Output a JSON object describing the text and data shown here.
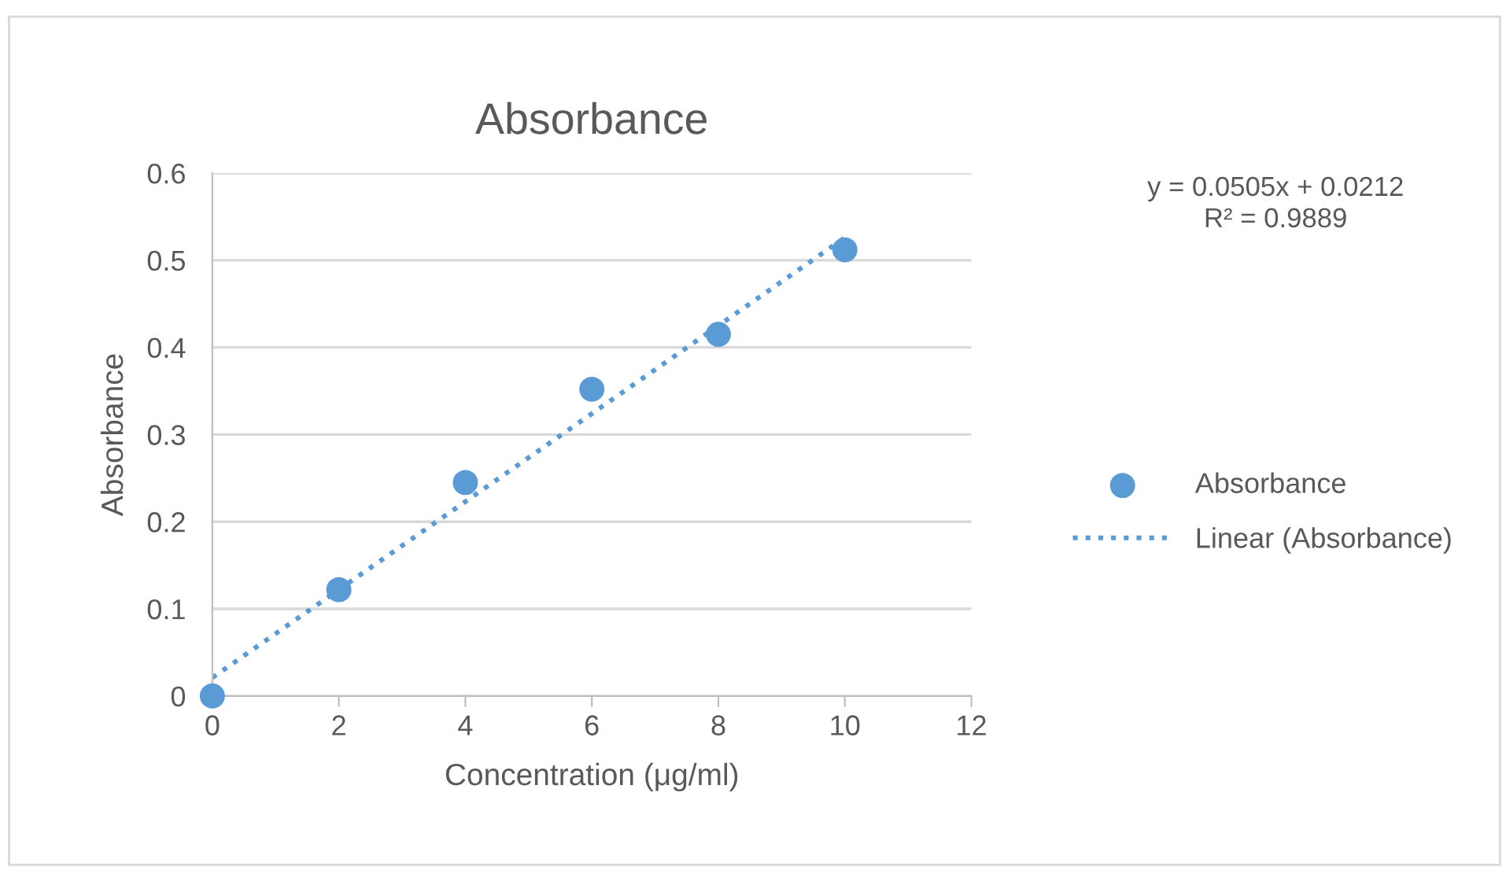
{
  "chart_data": {
    "type": "scatter",
    "title": "Absorbance",
    "xlabel": "Concentration (μg/ml)",
    "ylabel": "Absorbance",
    "x": [
      0,
      2,
      4,
      6,
      8,
      10
    ],
    "series": [
      {
        "name": "Absorbance",
        "color": "#5b9bd5",
        "marker": "circle",
        "values": [
          0,
          0.122,
          0.245,
          0.352,
          0.415,
          0.512
        ]
      },
      {
        "name": "Linear (Absorbance)",
        "type": "line",
        "color": "#5b9bd5",
        "line_style": "dotted",
        "x": [
          0,
          10
        ],
        "values": [
          0.021,
          0.526
        ]
      }
    ],
    "annotations": [
      "y = 0.0505x + 0.0212\nR² = 0.9889"
    ],
    "xlim": [
      0,
      12
    ],
    "xticks": [
      0,
      2,
      4,
      6,
      8,
      10,
      12
    ],
    "ylim": [
      0,
      0.6
    ],
    "yticks": [
      0,
      0.1,
      0.2,
      0.3,
      0.4,
      0.5,
      0.6
    ],
    "grid": "y",
    "legend": "right"
  }
}
